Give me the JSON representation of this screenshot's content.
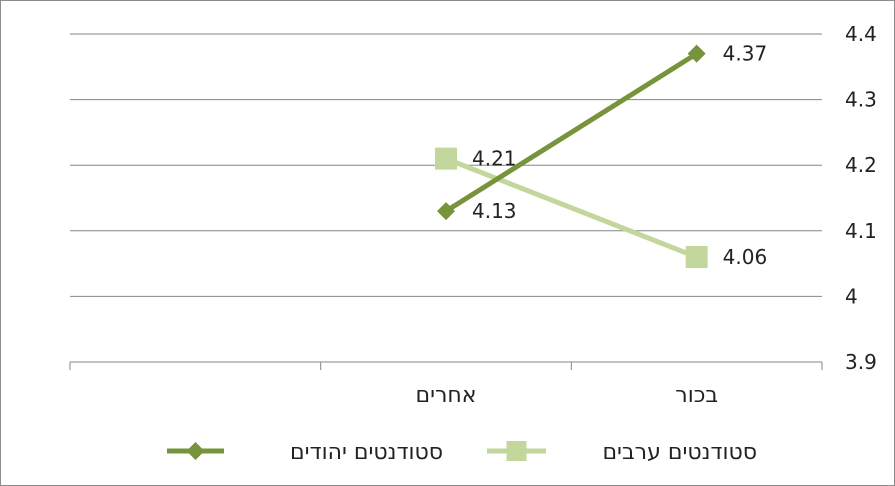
{
  "chart_data": {
    "type": "line",
    "categories": [
      "בכור",
      "אחרים"
    ],
    "x_axis_direction": "right-to-left",
    "y_axis_position": "right",
    "ylim": [
      3.9,
      4.4
    ],
    "yticks": [
      "3.9",
      "4",
      "4.1",
      "4.2",
      "4.3",
      "4.4"
    ],
    "grid": true,
    "legend_position": "bottom",
    "series": [
      {
        "name": "סטודנטים יהודים",
        "values": [
          4.37,
          4.13
        ],
        "labels": [
          "4.37",
          "4.13"
        ],
        "color": "#77933c",
        "marker": "diamond"
      },
      {
        "name": "סטודנטים ערבים",
        "values": [
          4.06,
          4.21
        ],
        "labels": [
          "4.06",
          "4.21"
        ],
        "color": "#c3d69b",
        "marker": "square"
      }
    ],
    "title": "",
    "xlabel": "",
    "ylabel": ""
  }
}
